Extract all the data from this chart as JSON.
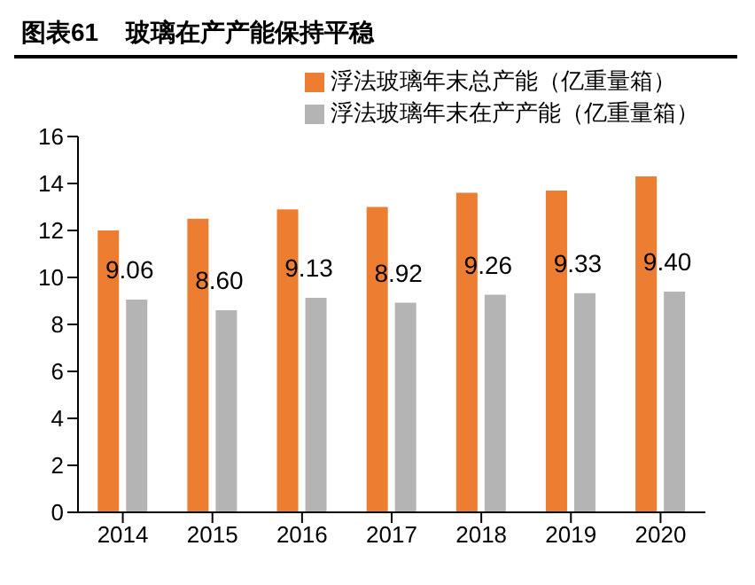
{
  "chart_data": {
    "type": "bar",
    "title": "图表61    玻璃在产产能保持平稳",
    "categories": [
      "2014",
      "2015",
      "2016",
      "2017",
      "2018",
      "2019",
      "2020"
    ],
    "series": [
      {
        "name": "浮法玻璃年末总产能（亿重量箱）",
        "color": "#ed7d31",
        "values": [
          12.0,
          12.5,
          12.9,
          13.0,
          13.6,
          13.7,
          14.3
        ]
      },
      {
        "name": "浮法玻璃年末在产产能（亿重量箱）",
        "color": "#b4b4b4",
        "values": [
          9.06,
          8.6,
          9.13,
          8.92,
          9.26,
          9.33,
          9.4
        ],
        "value_labels": [
          "9.06",
          "8.60",
          "9.13",
          "8.92",
          "9.26",
          "9.33",
          "9.40"
        ]
      }
    ],
    "ylim": [
      0,
      16
    ],
    "yticks": [
      0,
      2,
      4,
      6,
      8,
      10,
      12,
      14,
      16
    ],
    "grid": false,
    "legend": "top right"
  }
}
